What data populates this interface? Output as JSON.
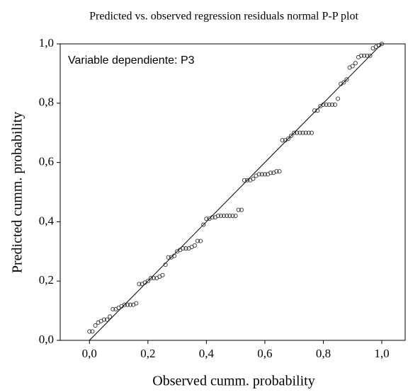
{
  "chart_data": {
    "type": "scatter",
    "title": "Predicted vs. observed regression residuals normal P-P plot",
    "annotation": "Variable dependiente: P3",
    "x_label": "Observed cumm. probability",
    "y_label": "Predicted cumm. probability",
    "diagonal": true,
    "color": "#333333",
    "xlim": [
      -0.1,
      1.08
    ],
    "ylim": [
      0,
      1
    ],
    "xticks": [
      {
        "value": 0,
        "label": "0,0"
      },
      {
        "value": 0.2,
        "label": "0,2"
      },
      {
        "value": 0.4,
        "label": "0,4"
      },
      {
        "value": 0.6,
        "label": "0,6"
      },
      {
        "value": 0.8,
        "label": "0,8"
      },
      {
        "value": 1,
        "label": "1,0"
      }
    ],
    "yticks": [
      {
        "value": 0,
        "label": "0,0"
      },
      {
        "value": 0.2,
        "label": "0,2"
      },
      {
        "value": 0.4,
        "label": "0,4"
      },
      {
        "value": 0.6,
        "label": "0,6"
      },
      {
        "value": 0.8,
        "label": "0,8"
      },
      {
        "value": 1,
        "label": "1,0"
      }
    ],
    "x": [
      0,
      0.01,
      0.02,
      0.03,
      0.04,
      0.05,
      0.06,
      0.07,
      0.08,
      0.09,
      0.1,
      0.11,
      0.12,
      0.13,
      0.14,
      0.15,
      0.16,
      0.17,
      0.18,
      0.19,
      0.2,
      0.21,
      0.22,
      0.23,
      0.24,
      0.25,
      0.26,
      0.27,
      0.28,
      0.29,
      0.3,
      0.31,
      0.32,
      0.33,
      0.34,
      0.35,
      0.36,
      0.37,
      0.38,
      0.39,
      0.4,
      0.41,
      0.42,
      0.43,
      0.44,
      0.45,
      0.46,
      0.47,
      0.48,
      0.49,
      0.5,
      0.51,
      0.52,
      0.53,
      0.54,
      0.55,
      0.56,
      0.57,
      0.58,
      0.59,
      0.6,
      0.61,
      0.62,
      0.63,
      0.64,
      0.65,
      0.66,
      0.67,
      0.68,
      0.69,
      0.7,
      0.71,
      0.72,
      0.73,
      0.74,
      0.75,
      0.76,
      0.77,
      0.78,
      0.79,
      0.8,
      0.81,
      0.82,
      0.83,
      0.84,
      0.85,
      0.86,
      0.87,
      0.88,
      0.89,
      0.9,
      0.91,
      0.92,
      0.93,
      0.94,
      0.95,
      0.96,
      0.97,
      0.98,
      0.99,
      1.0
    ],
    "values": [
      0.03,
      0.03,
      0.05,
      0.06,
      0.065,
      0.07,
      0.07,
      0.08,
      0.105,
      0.105,
      0.11,
      0.115,
      0.12,
      0.12,
      0.12,
      0.12,
      0.125,
      0.19,
      0.19,
      0.195,
      0.2,
      0.21,
      0.21,
      0.21,
      0.215,
      0.22,
      0.255,
      0.28,
      0.28,
      0.285,
      0.3,
      0.305,
      0.31,
      0.31,
      0.31,
      0.315,
      0.32,
      0.335,
      0.335,
      0.39,
      0.41,
      0.41,
      0.415,
      0.415,
      0.42,
      0.42,
      0.42,
      0.42,
      0.42,
      0.42,
      0.42,
      0.44,
      0.44,
      0.54,
      0.54,
      0.54,
      0.545,
      0.555,
      0.56,
      0.56,
      0.56,
      0.56,
      0.565,
      0.565,
      0.57,
      0.57,
      0.675,
      0.675,
      0.68,
      0.69,
      0.7,
      0.7,
      0.7,
      0.7,
      0.7,
      0.7,
      0.7,
      0.775,
      0.775,
      0.79,
      0.795,
      0.795,
      0.795,
      0.795,
      0.795,
      0.815,
      0.865,
      0.87,
      0.88,
      0.92,
      0.925,
      0.935,
      0.955,
      0.96,
      0.96,
      0.96,
      0.96,
      0.985,
      0.99,
      0.995,
      1.0
    ]
  }
}
